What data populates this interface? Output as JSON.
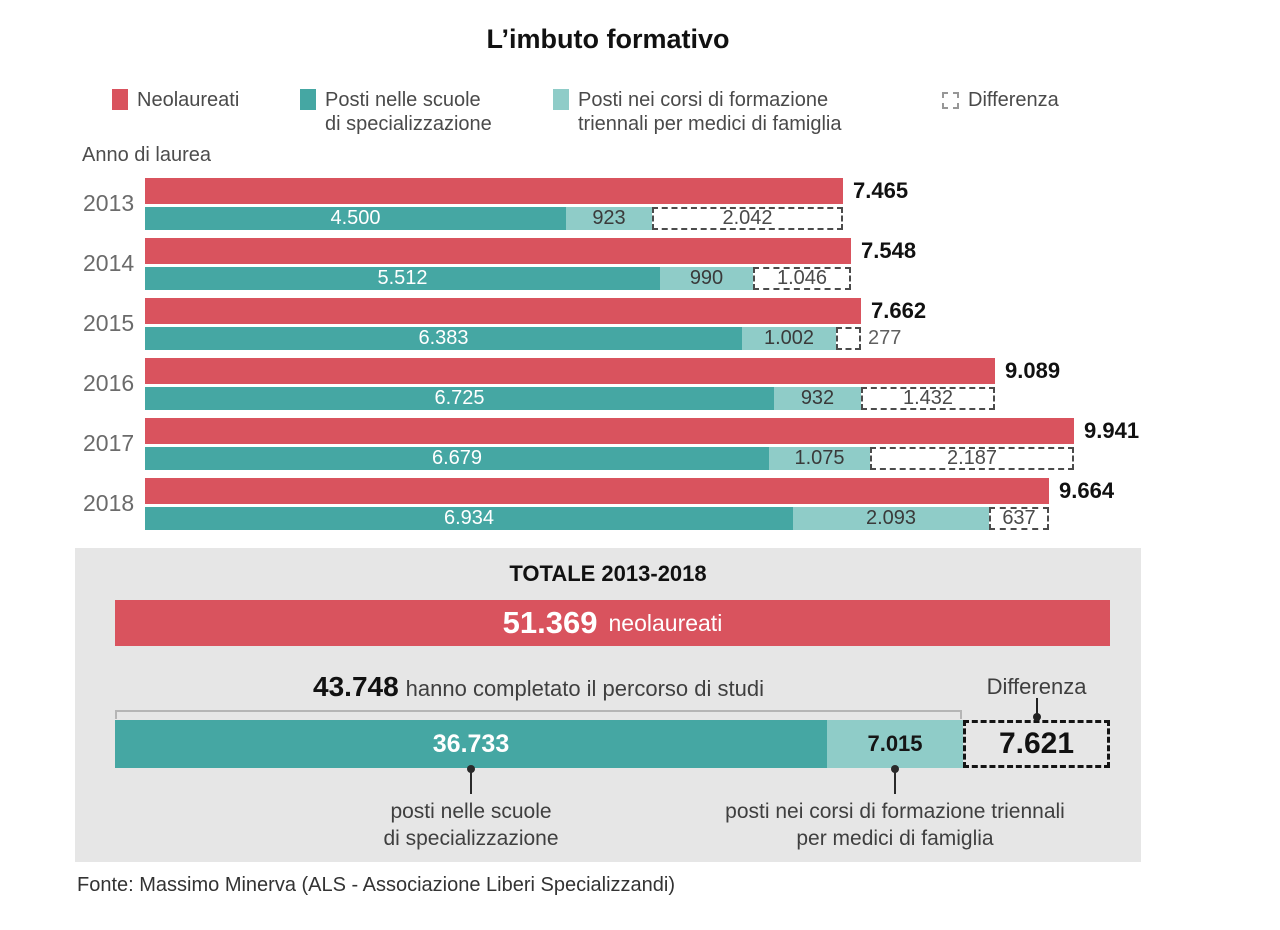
{
  "title": "L’imbuto formativo",
  "axis_label": "Anno di laurea",
  "colors": {
    "red": "#d9535e",
    "teal": "#45a7a3",
    "light_teal": "#8fccc8",
    "panel_gray": "#e6e6e6"
  },
  "legend": {
    "items": [
      {
        "name": "Neolaureati",
        "swatch": "red",
        "lines": [
          "Neolaureati"
        ]
      },
      {
        "name": "Posti nelle scuole di specializzazione",
        "swatch": "teal",
        "lines": [
          "Posti nelle scuole",
          "di specializzazione"
        ]
      },
      {
        "name": "Posti nei corsi di formazione triennali per medici di famiglia",
        "swatch": "light_teal",
        "lines": [
          "Posti nei corsi di formazione",
          "triennali per medici di famiglia"
        ]
      },
      {
        "name": "Differenza",
        "swatch": "dashed",
        "lines": [
          "Differenza"
        ]
      }
    ]
  },
  "chart_data": {
    "type": "bar",
    "orientation": "horizontal",
    "title": "L’imbuto formativo",
    "x_axis_label": "Anno di laurea",
    "categories": [
      "2013",
      "2014",
      "2015",
      "2016",
      "2017",
      "2018"
    ],
    "series": [
      {
        "name": "Neolaureati",
        "values": [
          7465,
          7548,
          7662,
          9089,
          9941,
          9664
        ],
        "labels": [
          "7.465",
          "7.548",
          "7.662",
          "9.089",
          "9.941",
          "9.664"
        ]
      },
      {
        "name": "Posti nelle scuole di specializzazione",
        "values": [
          4500,
          5512,
          6383,
          6725,
          6679,
          6934
        ],
        "labels": [
          "4.500",
          "5.512",
          "6.383",
          "6.725",
          "6.679",
          "6.934"
        ]
      },
      {
        "name": "Posti nei corsi di formazione triennali per medici di famiglia",
        "values": [
          923,
          990,
          1002,
          932,
          1075,
          2093
        ],
        "labels": [
          "923",
          "990",
          "1.002",
          "932",
          "1.075",
          "2.093"
        ]
      },
      {
        "name": "Differenza",
        "values": [
          2042,
          1046,
          277,
          1432,
          2187,
          637
        ],
        "labels": [
          "2.042",
          "1.046",
          "277",
          "1.432",
          "2.187",
          "637"
        ]
      }
    ]
  },
  "totals": {
    "title": "TOTALE 2013-2018",
    "total": {
      "value": 51369,
      "label": "51.369",
      "suffix": "neolaureati"
    },
    "completed": {
      "value": 43748,
      "label": "43.748",
      "suffix": "hanno completato il percorso di studi"
    },
    "spec": {
      "value": 36733,
      "label": "36.733",
      "caption": [
        "posti nelle scuole",
        "di specializzazione"
      ]
    },
    "corsi": {
      "value": 7015,
      "label": "7.015",
      "caption": [
        "posti nei corsi di formazione triennali",
        "per medici di famiglia"
      ]
    },
    "diff": {
      "value": 7621,
      "label": "7.621",
      "caption": "Differenza"
    }
  },
  "fonte": "Fonte: Massimo Minerva (ALS - Associazione Liberi Specializzandi)"
}
